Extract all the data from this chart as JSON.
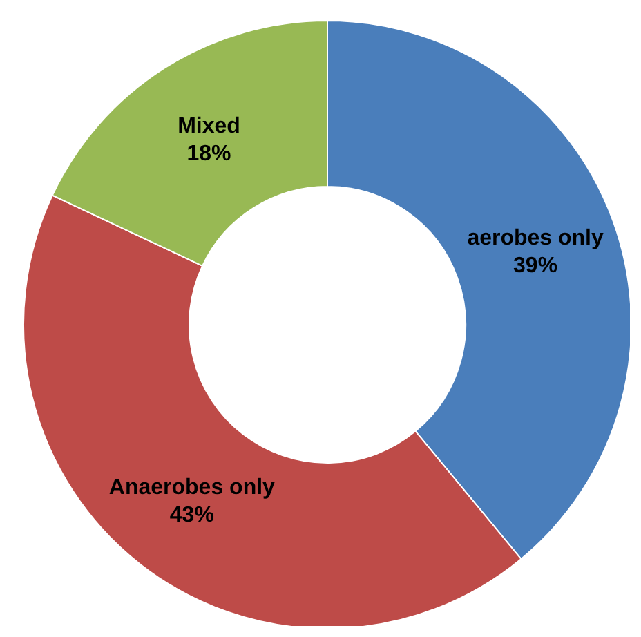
{
  "chart_data": {
    "type": "donut",
    "categories": [
      "aerobes only",
      "Anaerobes only",
      "Mixed"
    ],
    "values": [
      39,
      43,
      18
    ],
    "colors": [
      "#4a7ebb",
      "#be4b48",
      "#98b954"
    ],
    "value_labels": [
      "39%",
      "43%",
      "18%"
    ],
    "legend": false
  }
}
